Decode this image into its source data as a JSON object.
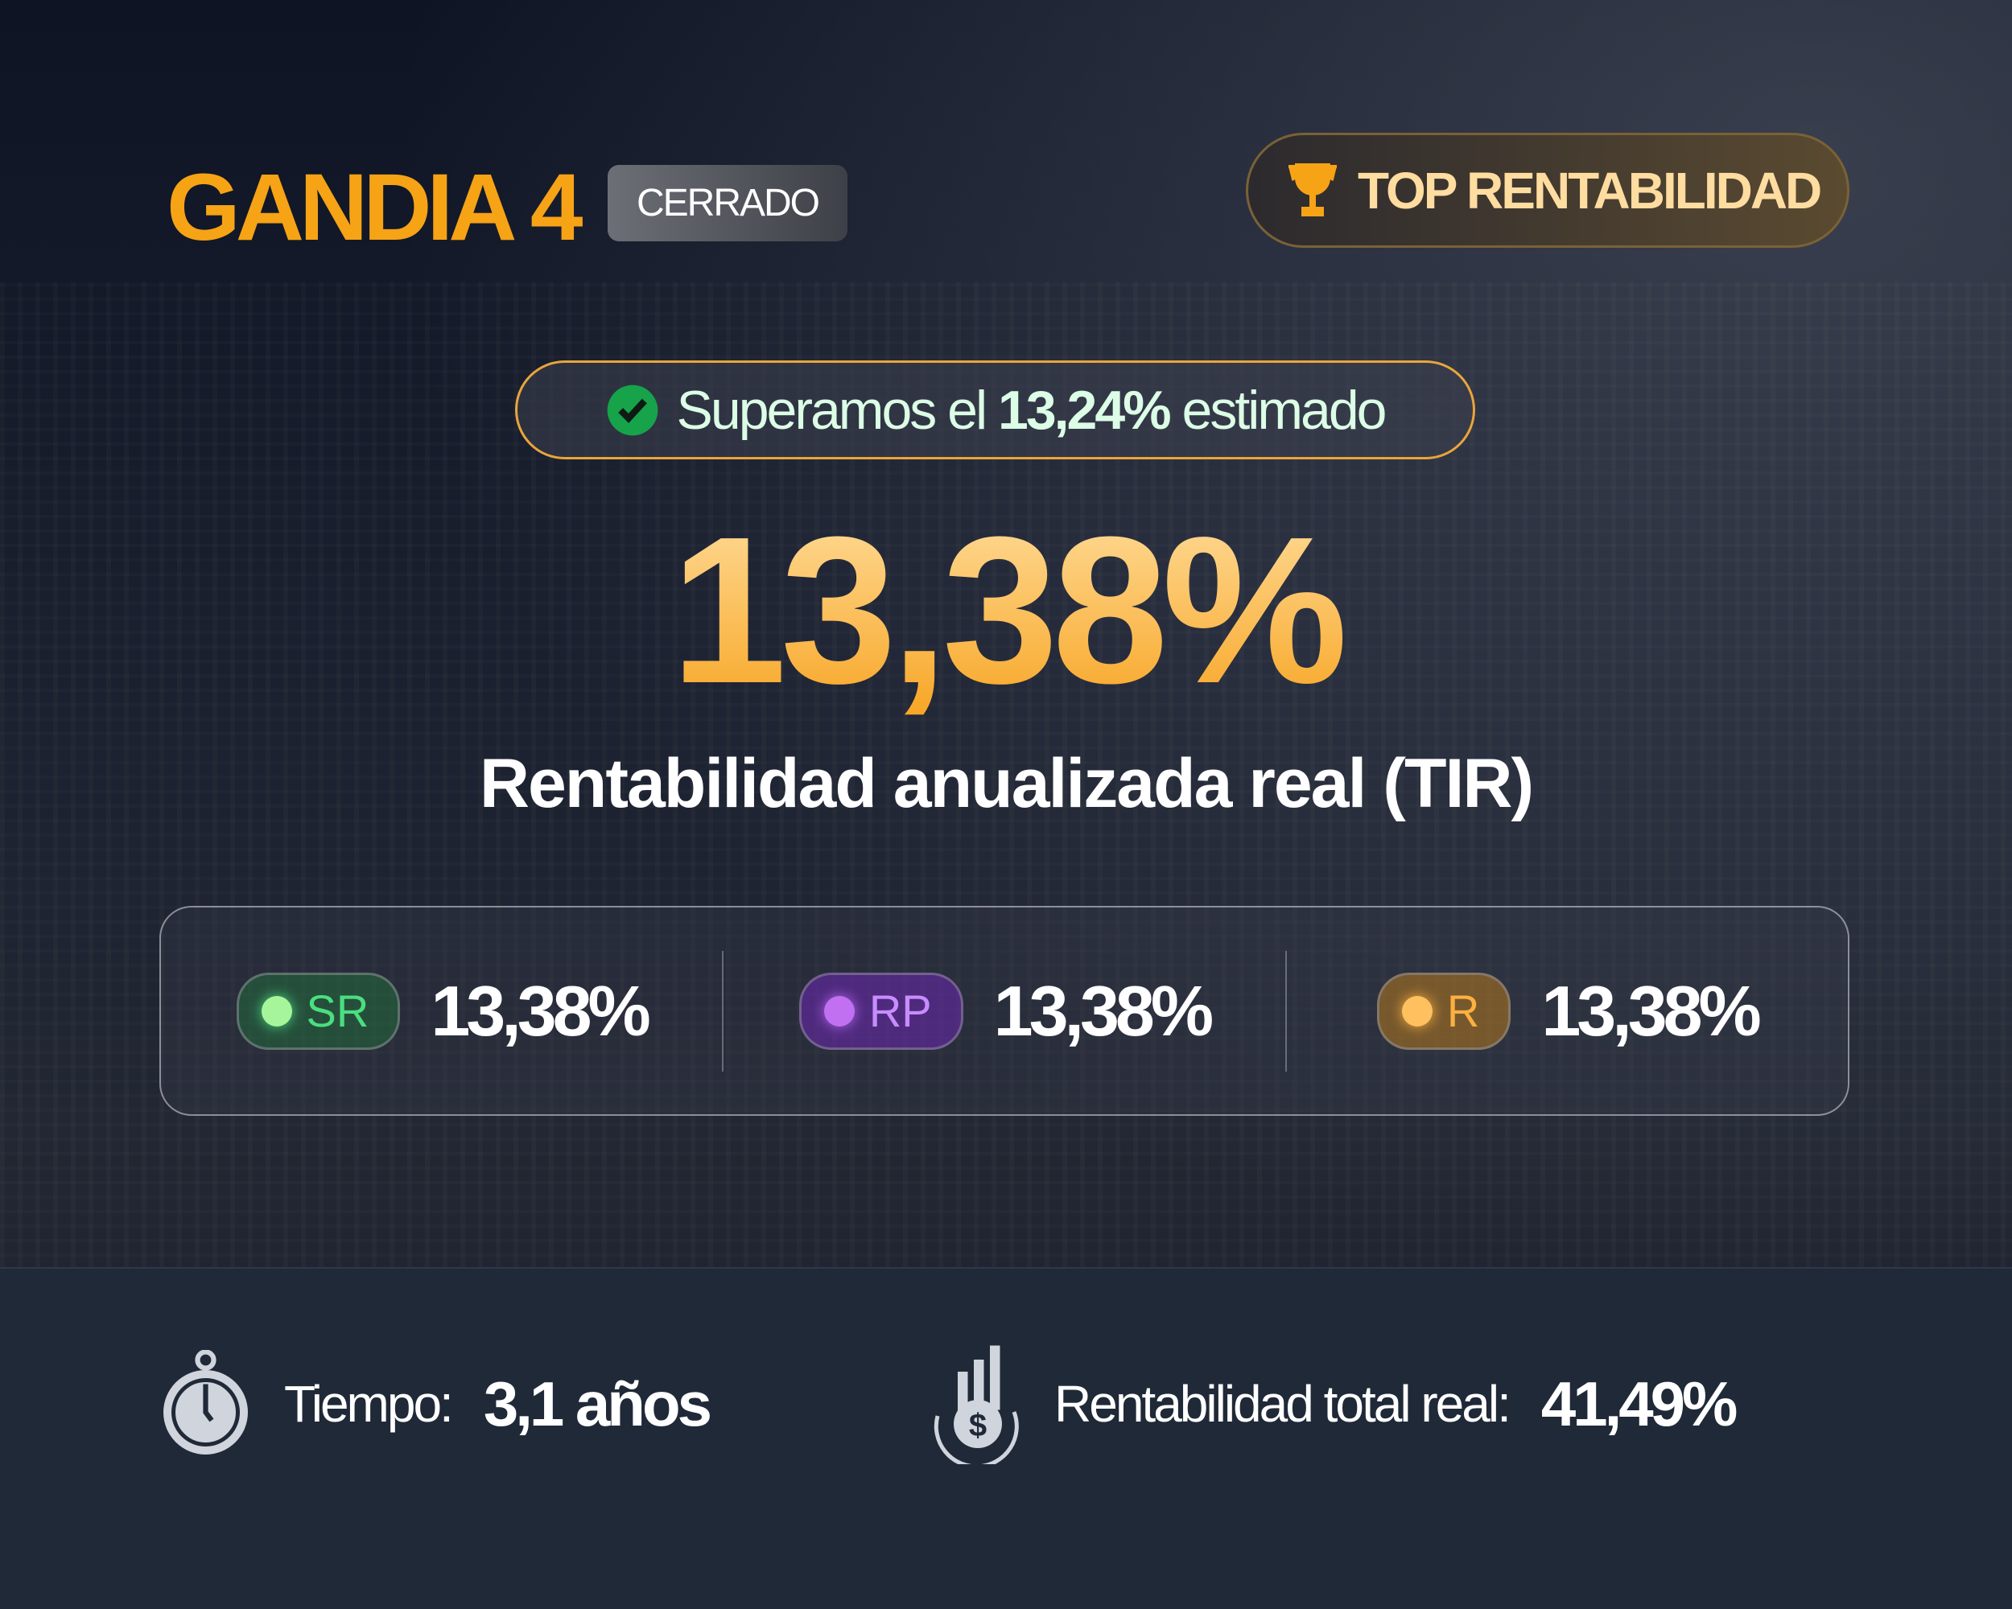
{
  "header": {
    "title": "GANDIA 4",
    "status_badge": "CERRADO",
    "top_badge": "TOP RENTABILIDAD",
    "top_icon": "trophy-icon"
  },
  "estimate": {
    "prefix": "Superamos el",
    "value": "13,24%",
    "suffix": "estimado",
    "icon": "check-circle-icon"
  },
  "main": {
    "value": "13,38%",
    "label": "Rentabilidad anualizada real (TIR)"
  },
  "tiers": [
    {
      "tag": "SR",
      "value": "13,38%",
      "color": "#4ade80"
    },
    {
      "tag": "RP",
      "value": "13,38%",
      "color": "#b464f0"
    },
    {
      "tag": "R",
      "value": "13,38%",
      "color": "#fbb040"
    }
  ],
  "footer": {
    "time_label": "Tiempo:",
    "time_value": "3,1 años",
    "time_icon": "stopwatch-icon",
    "total_label": "Rentabilidad total real:",
    "total_value": "41,49%",
    "total_icon": "money-growth-icon"
  },
  "colors": {
    "accent": "#f6a316",
    "background": "#121826",
    "footer": "#202938"
  }
}
